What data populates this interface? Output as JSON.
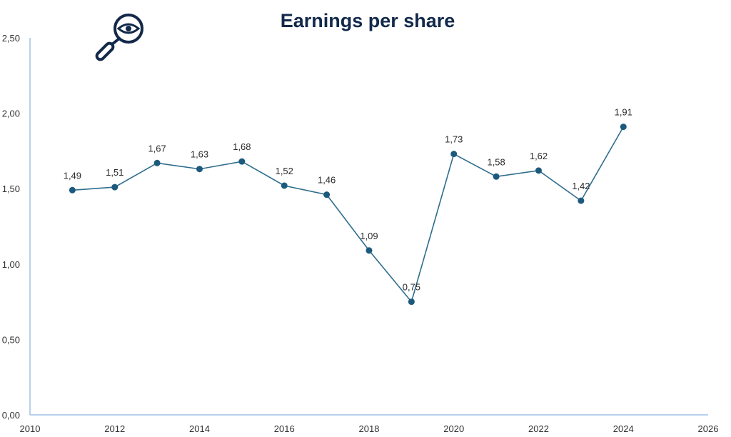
{
  "chart_data": {
    "type": "line",
    "title": "Earnings per share",
    "xlabel": "",
    "ylabel": "",
    "x": [
      2011,
      2012,
      2013,
      2014,
      2015,
      2016,
      2017,
      2018,
      2019,
      2020,
      2021,
      2022,
      2023,
      2024
    ],
    "values": [
      1.49,
      1.51,
      1.67,
      1.63,
      1.68,
      1.52,
      1.46,
      1.09,
      0.75,
      1.73,
      1.58,
      1.62,
      1.42,
      1.91
    ],
    "data_labels": [
      "1,49",
      "1,51",
      "1,67",
      "1,63",
      "1,68",
      "1,52",
      "1,46",
      "1,09",
      "0,75",
      "1,73",
      "1,58",
      "1,62",
      "1,42",
      "1,91"
    ],
    "xlim": [
      2010,
      2026
    ],
    "ylim": [
      0,
      2.5
    ],
    "x_ticks": [
      "2010",
      "2012",
      "2014",
      "2016",
      "2018",
      "2020",
      "2022",
      "2024",
      "2026"
    ],
    "y_ticks": [
      "0,00",
      "0,50",
      "1,00",
      "1,50",
      "2,00",
      "2,50"
    ],
    "grid": false,
    "colors": {
      "line": "#2e6d8e",
      "marker": "#1c5a7d",
      "axis": "#9dc3e6",
      "title": "#13294b",
      "icon": "#13294b"
    },
    "icon": "magnifier-eye-icon"
  }
}
